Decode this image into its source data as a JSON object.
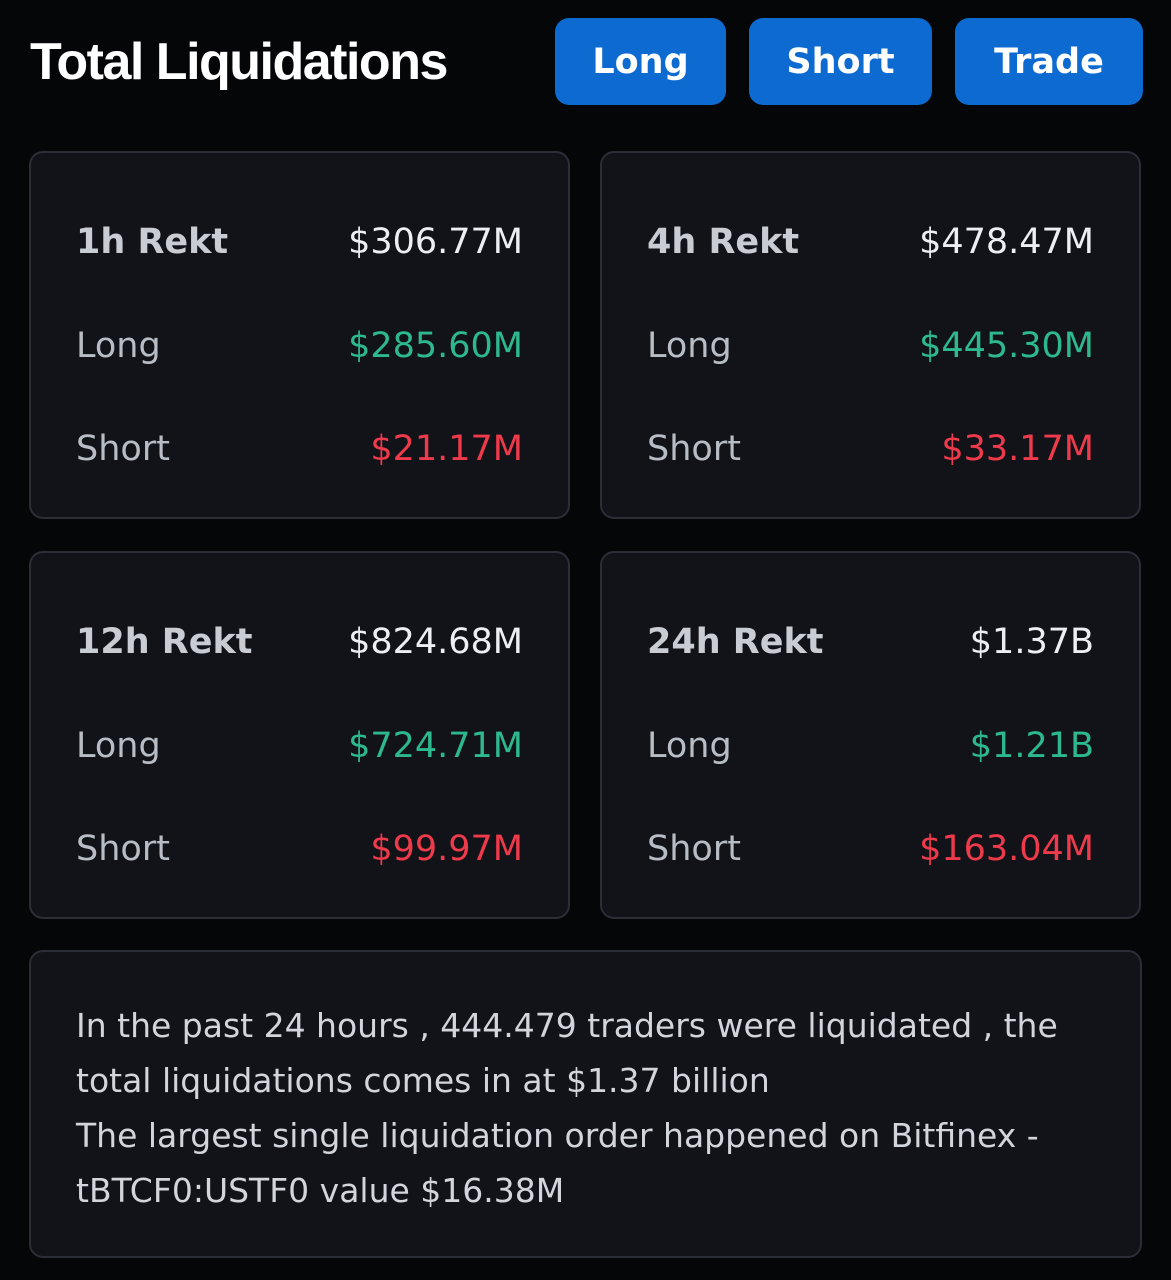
{
  "header": {
    "title": "Total Liquidations",
    "buttons": {
      "long": "Long",
      "short": "Short",
      "trade": "Trade"
    }
  },
  "cards": [
    {
      "period": "1h Rekt",
      "total": "$306.77M",
      "long_label": "Long",
      "long": "$285.60M",
      "short_label": "Short",
      "short": "$21.17M"
    },
    {
      "period": "4h Rekt",
      "total": "$478.47M",
      "long_label": "Long",
      "long": "$445.30M",
      "short_label": "Short",
      "short": "$33.17M"
    },
    {
      "period": "12h Rekt",
      "total": "$824.68M",
      "long_label": "Long",
      "long": "$724.71M",
      "short_label": "Short",
      "short": "$99.97M"
    },
    {
      "period": "24h Rekt",
      "total": "$1.37B",
      "long_label": "Long",
      "long": "$1.21B",
      "short_label": "Short",
      "short": "$163.04M"
    }
  ],
  "summary": {
    "line1": "In the past 24 hours , 444.479 traders were liquidated , the",
    "line2": "total liquidations comes in at $1.37 billion",
    "line3": "The largest single liquidation order happened on Bitfinex -",
    "line4": "tBTCF0:USTF0 value $16.38M"
  },
  "colors": {
    "background": "#050608",
    "card": "#111319",
    "accent": "#0c6ad0",
    "long": "#2db98d",
    "short": "#ee3a4a"
  }
}
